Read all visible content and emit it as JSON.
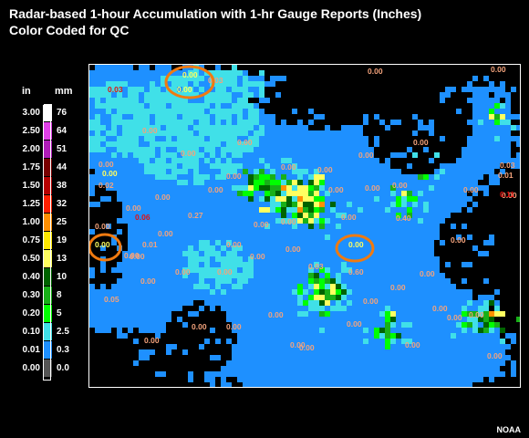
{
  "title": {
    "line1": "Radar-based 1-hour Accumulation with 1-hr Gauge Reports (Inches)",
    "line2": "Color Coded for QC"
  },
  "legend": {
    "unit_in": "in",
    "unit_mm": "mm",
    "rows": [
      {
        "in": "3.00",
        "mm": "76",
        "color": "#ffffff"
      },
      {
        "in": "2.50",
        "mm": "64",
        "color": "#e040e8"
      },
      {
        "in": "2.00",
        "mm": "51",
        "color": "#b01cb8"
      },
      {
        "in": "1.75",
        "mm": "44",
        "color": "#7a0000"
      },
      {
        "in": "1.50",
        "mm": "38",
        "color": "#b80000"
      },
      {
        "in": "1.25",
        "mm": "32",
        "color": "#ff2000"
      },
      {
        "in": "1.00",
        "mm": "25",
        "color": "#ff9000"
      },
      {
        "in": "0.75",
        "mm": "19",
        "color": "#ffe800"
      },
      {
        "in": "0.50",
        "mm": "13",
        "color": "#ffff60"
      },
      {
        "in": "0.40",
        "mm": "10",
        "color": "#006400"
      },
      {
        "in": "0.30",
        "mm": "8",
        "color": "#18b018"
      },
      {
        "in": "0.20",
        "mm": "5",
        "color": "#00ff00"
      },
      {
        "in": "0.10",
        "mm": "2.5",
        "color": "#40e0e8"
      },
      {
        "in": "0.01",
        "mm": "0.3",
        "color": "#1e90ff"
      },
      {
        "in": "0.00",
        "mm": "0.0",
        "color": "#555555"
      }
    ]
  },
  "map": {
    "colors": {
      "background": "#000000",
      "light_rain": "#1e90ff",
      "cyan": "#40e0e8",
      "green": "#00ff00",
      "mid_green": "#18b018",
      "dark_green": "#006400",
      "yellow": "#ffff60",
      "orange": "#ff9000",
      "red": "#ff2000",
      "gauge_text": "#f4a37c",
      "gauge_highlight": "#ffff60",
      "gauge_red": "#e01010",
      "qc_circle": "#f07a10"
    },
    "gauge_reports": [
      {
        "text": "0.00",
        "color": "highlight",
        "circled": true
      },
      {
        "text": "0.00",
        "color": "highlight",
        "circled": true
      },
      {
        "text": "0.03",
        "color": "normal"
      },
      {
        "text": "0.00",
        "color": "normal"
      },
      {
        "text": "0.00",
        "color": "normal"
      },
      {
        "text": "0.03",
        "color": "red"
      },
      {
        "text": "0.00",
        "color": "normal"
      },
      {
        "text": "0.00",
        "color": "normal"
      },
      {
        "text": "0.00",
        "color": "normal"
      },
      {
        "text": "0.00",
        "color": "normal"
      },
      {
        "text": "0.00",
        "color": "normal"
      },
      {
        "text": "0.00",
        "color": "normal"
      },
      {
        "text": "0.00",
        "color": "normal"
      },
      {
        "text": "0.00",
        "color": "normal"
      },
      {
        "text": "0.00",
        "color": "highlight"
      },
      {
        "text": "0.02",
        "color": "normal"
      },
      {
        "text": "0.00",
        "color": "normal"
      },
      {
        "text": "0.00",
        "color": "normal"
      },
      {
        "text": "0.00",
        "color": "normal"
      },
      {
        "text": "0.00",
        "color": "normal"
      },
      {
        "text": "0.00",
        "color": "normal"
      },
      {
        "text": "0.00",
        "color": "normal"
      },
      {
        "text": "0.00",
        "color": "normal"
      },
      {
        "text": "0.00",
        "color": "normal"
      },
      {
        "text": "0.03",
        "color": "normal"
      },
      {
        "text": "0.01",
        "color": "normal"
      },
      {
        "text": "0.00",
        "color": "normal"
      },
      {
        "text": "0.11",
        "color": "red"
      },
      {
        "text": "0.00",
        "color": "normal"
      },
      {
        "text": "0.06",
        "color": "red"
      },
      {
        "text": "0.27",
        "color": "normal"
      },
      {
        "text": "0.00",
        "color": "normal"
      },
      {
        "text": "0.00",
        "color": "normal"
      },
      {
        "text": "0.00",
        "color": "normal"
      },
      {
        "text": "0.40",
        "color": "normal"
      },
      {
        "text": "0.00",
        "color": "highlight",
        "circled": true
      },
      {
        "text": "0.00",
        "color": "highlight",
        "circled": true
      },
      {
        "text": "0.00",
        "color": "normal"
      },
      {
        "text": "0.01",
        "color": "normal"
      },
      {
        "text": "0.00",
        "color": "normal"
      },
      {
        "text": "0.00",
        "color": "normal"
      },
      {
        "text": "0.00",
        "color": "normal"
      },
      {
        "text": "0.00",
        "color": "normal"
      },
      {
        "text": "0.03",
        "color": "normal"
      },
      {
        "text": "0.00",
        "color": "normal"
      },
      {
        "text": "0.60",
        "color": "normal"
      },
      {
        "text": "0.00",
        "color": "normal"
      },
      {
        "text": "0.05",
        "color": "normal"
      },
      {
        "text": "0.00",
        "color": "normal"
      },
      {
        "text": "0.00",
        "color": "normal"
      },
      {
        "text": "0.00",
        "color": "normal"
      },
      {
        "text": "0.00",
        "color": "normal"
      },
      {
        "text": "0.00",
        "color": "normal"
      },
      {
        "text": "0.00",
        "color": "normal"
      },
      {
        "text": "0.00",
        "color": "normal"
      },
      {
        "text": "0.00",
        "color": "normal"
      },
      {
        "text": "0.00",
        "color": "normal"
      },
      {
        "text": "0.00",
        "color": "normal"
      },
      {
        "text": "0.00",
        "color": "normal"
      },
      {
        "text": "0.00",
        "color": "normal"
      },
      {
        "text": "0.00",
        "color": "normal"
      },
      {
        "text": "0.00",
        "color": "normal"
      },
      {
        "text": "0.00",
        "color": "normal"
      },
      {
        "text": "0.00",
        "color": "normal"
      },
      {
        "text": "0.00",
        "color": "normal"
      },
      {
        "text": "0.00",
        "color": "normal"
      }
    ]
  },
  "credit": "NOAA"
}
